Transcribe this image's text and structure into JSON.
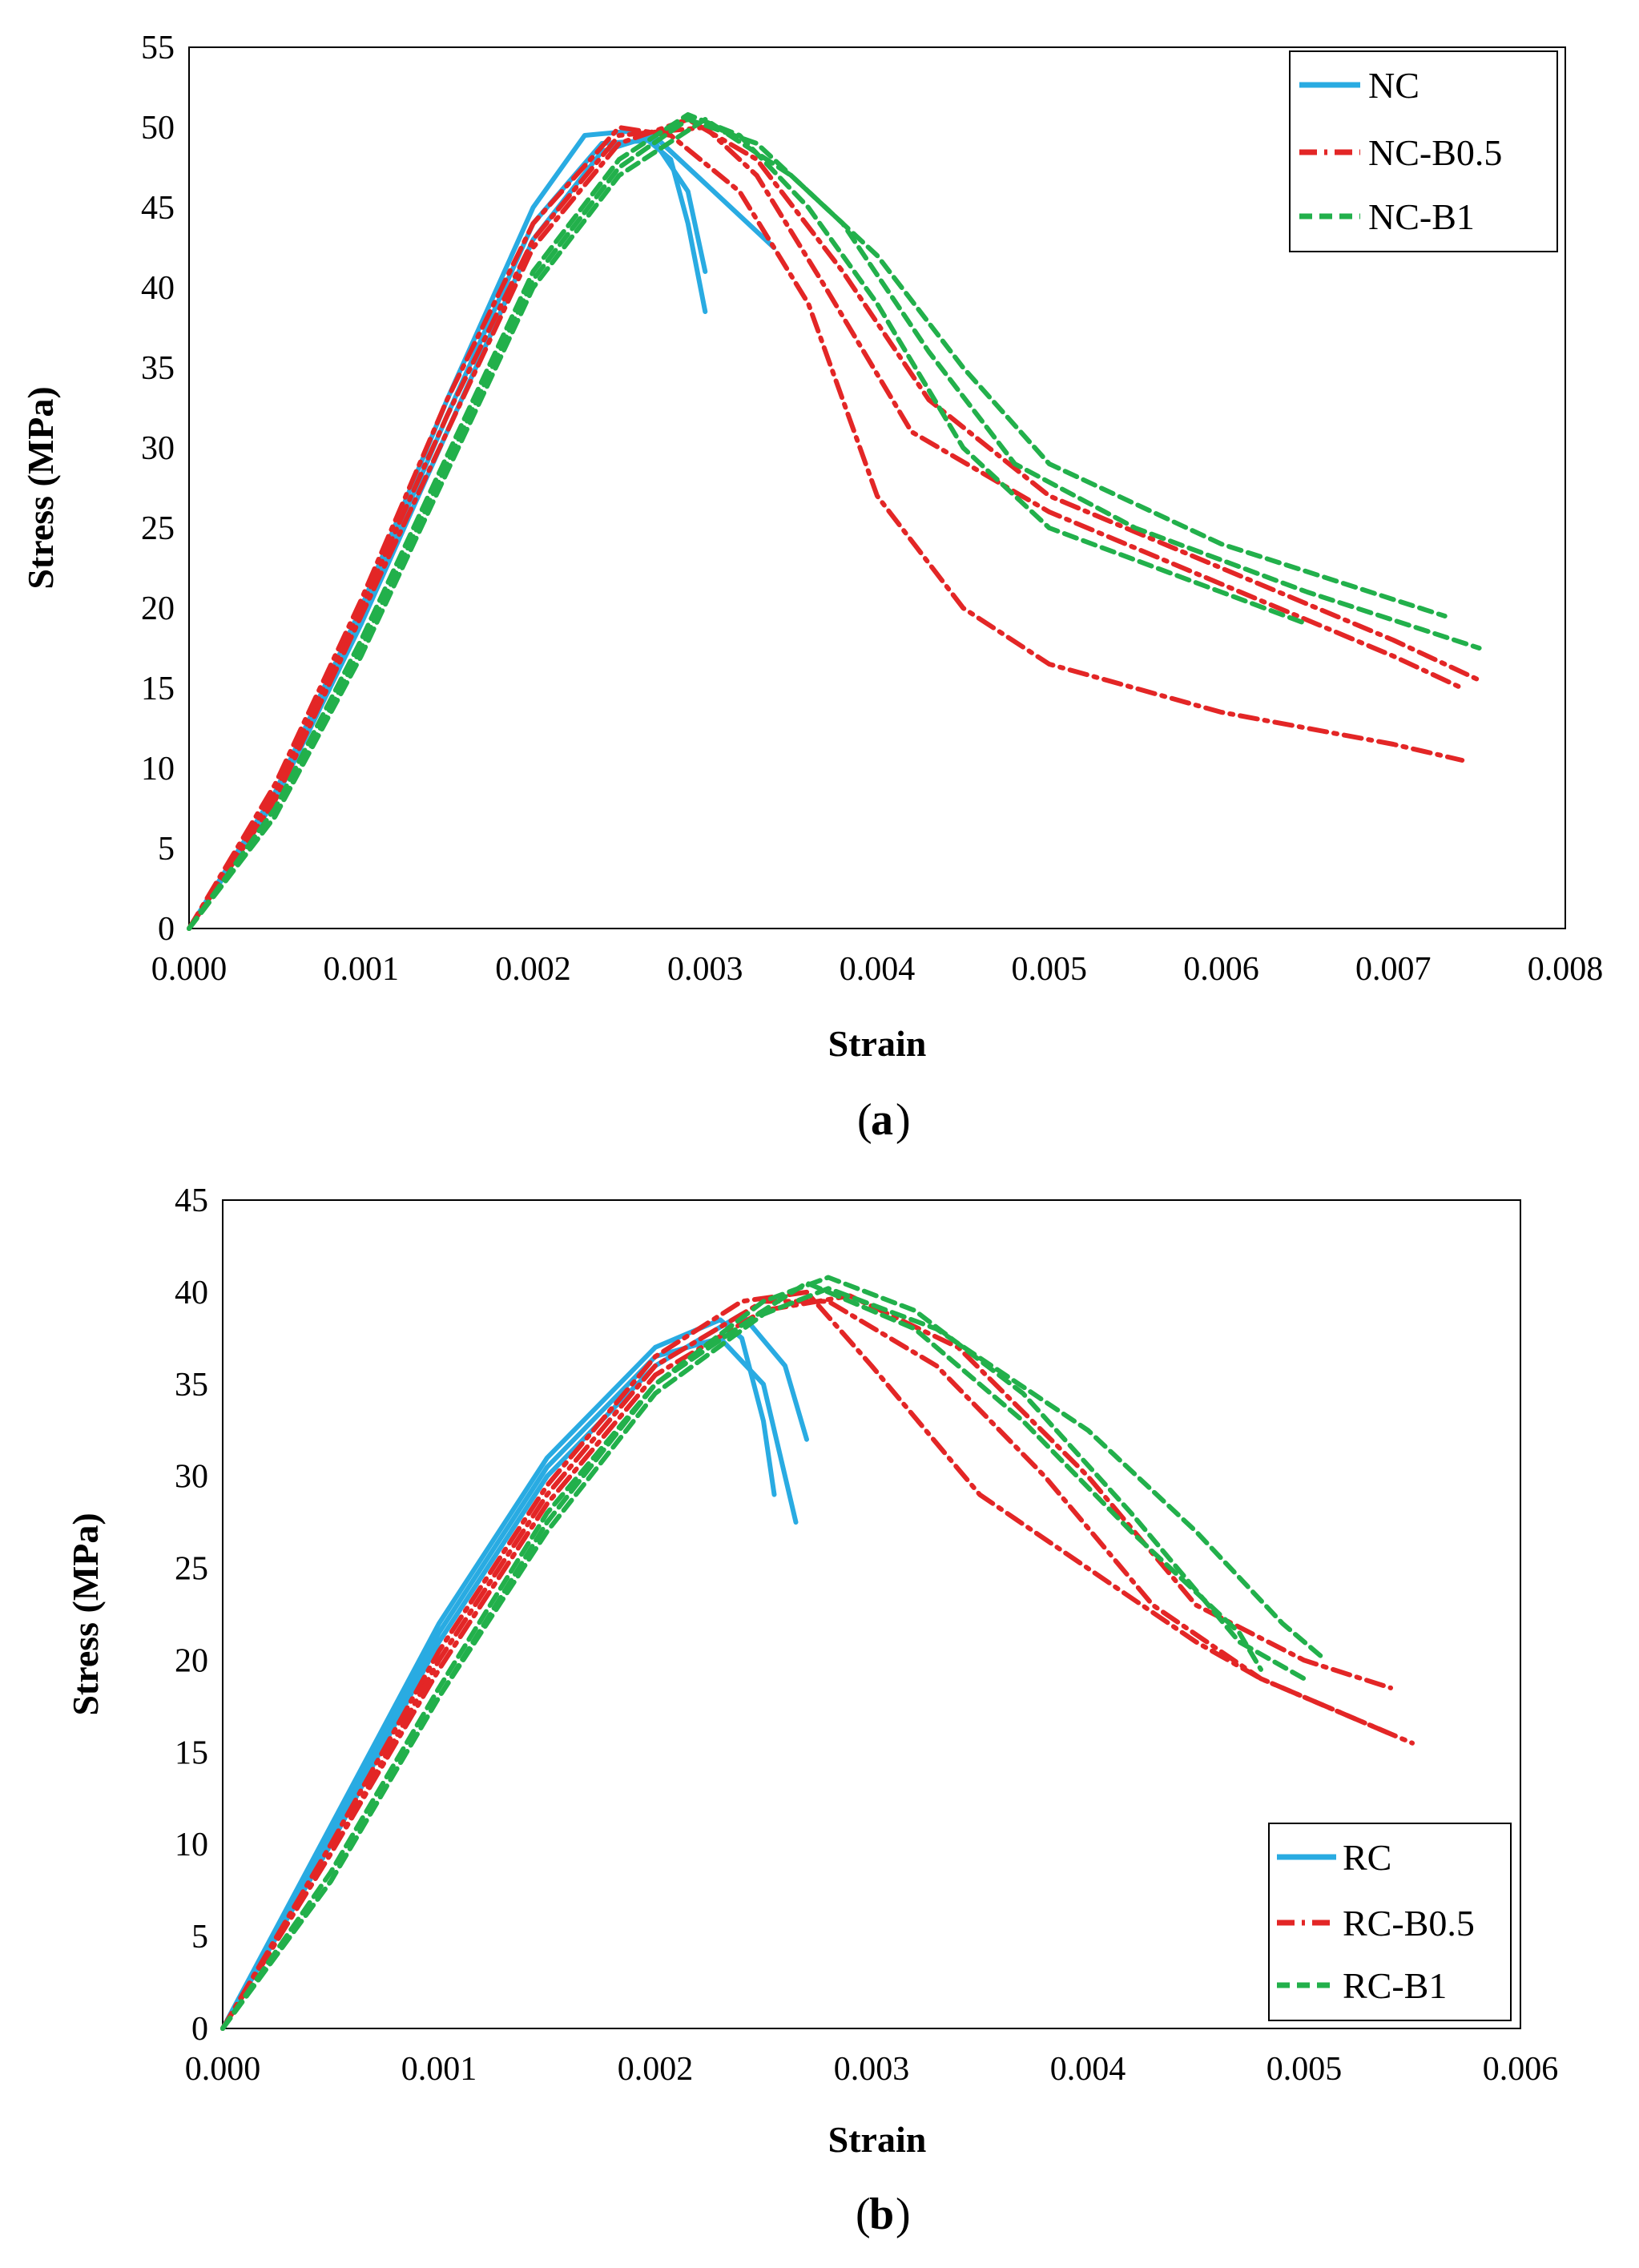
{
  "chart_data": [
    {
      "type": "line",
      "panel_label": "a",
      "xlabel": "Strain",
      "ylabel": "Stress (MPa)",
      "xlim": [
        0,
        0.008
      ],
      "ylim": [
        0,
        55
      ],
      "xticks": [
        "0.000",
        "0.001",
        "0.002",
        "0.003",
        "0.004",
        "0.005",
        "0.006",
        "0.007",
        "0.008"
      ],
      "yticks": [
        "0",
        "5",
        "10",
        "15",
        "20",
        "25",
        "30",
        "35",
        "40",
        "45",
        "50",
        "55"
      ],
      "legend_position": "top-right",
      "series": [
        {
          "name": "NC",
          "label": "NC",
          "color": "#29abe2",
          "dash": "solid",
          "curves": [
            [
              [
                0,
                0
              ],
              [
                0.0005,
                8.5
              ],
              [
                0.001,
                20
              ],
              [
                0.0015,
                33
              ],
              [
                0.002,
                45
              ],
              [
                0.0023,
                49.5
              ],
              [
                0.0026,
                49.8
              ],
              [
                0.0028,
                48
              ],
              [
                0.0029,
                44
              ],
              [
                0.003,
                38.5
              ]
            ],
            [
              [
                0,
                0
              ],
              [
                0.0005,
                8
              ],
              [
                0.001,
                19.5
              ],
              [
                0.0015,
                32
              ],
              [
                0.002,
                44
              ],
              [
                0.0024,
                49
              ],
              [
                0.0027,
                49.2
              ],
              [
                0.0029,
                46
              ],
              [
                0.003,
                41
              ]
            ],
            [
              [
                0,
                0
              ],
              [
                0.0005,
                8
              ],
              [
                0.001,
                19
              ],
              [
                0.0015,
                31
              ],
              [
                0.002,
                43
              ],
              [
                0.0024,
                48.5
              ],
              [
                0.0027,
                49.5
              ],
              [
                0.003,
                46.5
              ],
              [
                0.0034,
                42.5
              ]
            ]
          ]
        },
        {
          "name": "NC-B0.5",
          "label": "NC-B0.5",
          "color": "#e32626",
          "dash": "dashdot",
          "curves": [
            [
              [
                0,
                0
              ],
              [
                0.0005,
                9
              ],
              [
                0.001,
                20.5
              ],
              [
                0.0015,
                33
              ],
              [
                0.002,
                44
              ],
              [
                0.0025,
                50
              ],
              [
                0.0028,
                49.5
              ],
              [
                0.0032,
                46
              ],
              [
                0.0036,
                39
              ],
              [
                0.004,
                27
              ],
              [
                0.0045,
                20
              ],
              [
                0.005,
                16.5
              ],
              [
                0.006,
                13.5
              ],
              [
                0.007,
                11.5
              ],
              [
                0.0074,
                10.5
              ]
            ],
            [
              [
                0,
                0
              ],
              [
                0.0005,
                8.5
              ],
              [
                0.001,
                20
              ],
              [
                0.0015,
                32
              ],
              [
                0.002,
                43
              ],
              [
                0.0025,
                49.5
              ],
              [
                0.003,
                50
              ],
              [
                0.0033,
                47
              ],
              [
                0.0037,
                40
              ],
              [
                0.0042,
                31
              ],
              [
                0.005,
                26
              ],
              [
                0.006,
                21.5
              ],
              [
                0.007,
                17
              ],
              [
                0.0074,
                15
              ]
            ],
            [
              [
                0,
                0
              ],
              [
                0.0005,
                8
              ],
              [
                0.001,
                19.5
              ],
              [
                0.0015,
                31
              ],
              [
                0.002,
                42.5
              ],
              [
                0.0025,
                49
              ],
              [
                0.0029,
                50.5
              ],
              [
                0.0033,
                48
              ],
              [
                0.0038,
                41
              ],
              [
                0.0043,
                33
              ],
              [
                0.005,
                27
              ],
              [
                0.006,
                22.5
              ],
              [
                0.007,
                18
              ],
              [
                0.0075,
                15.5
              ]
            ]
          ]
        },
        {
          "name": "NC-B1",
          "label": "NC-B1",
          "color": "#22b04b",
          "dash": "dashed",
          "curves": [
            [
              [
                0,
                0
              ],
              [
                0.0005,
                7.5
              ],
              [
                0.001,
                18
              ],
              [
                0.0015,
                29.5
              ],
              [
                0.002,
                41
              ],
              [
                0.0025,
                48
              ],
              [
                0.0029,
                50.8
              ],
              [
                0.0032,
                49.5
              ],
              [
                0.0036,
                45
              ],
              [
                0.004,
                39
              ],
              [
                0.0045,
                30
              ],
              [
                0.005,
                25
              ],
              [
                0.006,
                21
              ],
              [
                0.0065,
                19
              ]
            ],
            [
              [
                0,
                0
              ],
              [
                0.0005,
                7
              ],
              [
                0.001,
                17.5
              ],
              [
                0.0015,
                29
              ],
              [
                0.002,
                40.5
              ],
              [
                0.0025,
                47.5
              ],
              [
                0.0029,
                50.5
              ],
              [
                0.0033,
                49
              ],
              [
                0.0038,
                44
              ],
              [
                0.0043,
                36
              ],
              [
                0.0048,
                29
              ],
              [
                0.0055,
                25
              ],
              [
                0.0065,
                21
              ],
              [
                0.0075,
                17.5
              ]
            ],
            [
              [
                0,
                0
              ],
              [
                0.0005,
                7
              ],
              [
                0.001,
                17
              ],
              [
                0.0015,
                28.5
              ],
              [
                0.002,
                40
              ],
              [
                0.0025,
                47
              ],
              [
                0.003,
                50.5
              ],
              [
                0.0035,
                47
              ],
              [
                0.004,
                42
              ],
              [
                0.0045,
                35
              ],
              [
                0.005,
                29
              ],
              [
                0.006,
                24
              ],
              [
                0.0073,
                19.5
              ]
            ]
          ]
        }
      ]
    },
    {
      "type": "line",
      "panel_label": "b",
      "xlabel": "Strain",
      "ylabel": "Stress (MPa)",
      "xlim": [
        0,
        0.006
      ],
      "ylim": [
        0,
        45
      ],
      "xticks": [
        "0.000",
        "0.001",
        "0.002",
        "0.003",
        "0.004",
        "0.005",
        "0.006"
      ],
      "yticks": [
        "0",
        "5",
        "10",
        "15",
        "20",
        "25",
        "30",
        "35",
        "40",
        "45"
      ],
      "legend_position": "bottom-right",
      "series": [
        {
          "name": "RC",
          "label": "RC",
          "color": "#29abe2",
          "dash": "solid",
          "curves": [
            [
              [
                0,
                0
              ],
              [
                0.0005,
                11
              ],
              [
                0.001,
                22
              ],
              [
                0.0015,
                31
              ],
              [
                0.002,
                37
              ],
              [
                0.0023,
                38.5
              ],
              [
                0.0024,
                37.5
              ],
              [
                0.0025,
                33
              ],
              [
                0.00255,
                29
              ]
            ],
            [
              [
                0,
                0
              ],
              [
                0.0005,
                10.5
              ],
              [
                0.001,
                21.5
              ],
              [
                0.0015,
                30.5
              ],
              [
                0.002,
                36.5
              ],
              [
                0.0023,
                37.5
              ],
              [
                0.0025,
                35
              ],
              [
                0.00265,
                27.5
              ]
            ],
            [
              [
                0,
                0
              ],
              [
                0.0005,
                10
              ],
              [
                0.001,
                21
              ],
              [
                0.0015,
                30
              ],
              [
                0.002,
                36
              ],
              [
                0.0024,
                38.8
              ],
              [
                0.0026,
                36
              ],
              [
                0.0027,
                32
              ]
            ]
          ]
        },
        {
          "name": "RC-B0.5",
          "label": "RC-B0.5",
          "color": "#e32626",
          "dash": "dashdot",
          "curves": [
            [
              [
                0,
                0
              ],
              [
                0.0005,
                10
              ],
              [
                0.001,
                20.5
              ],
              [
                0.0015,
                29.5
              ],
              [
                0.002,
                36.5
              ],
              [
                0.0024,
                39.5
              ],
              [
                0.0027,
                40
              ],
              [
                0.003,
                36
              ],
              [
                0.0035,
                29
              ],
              [
                0.004,
                25
              ],
              [
                0.0045,
                21
              ],
              [
                0.0048,
                19
              ],
              [
                0.0054,
                16
              ]
            ],
            [
              [
                0,
                0
              ],
              [
                0.0005,
                9.5
              ],
              [
                0.001,
                20
              ],
              [
                0.0015,
                29
              ],
              [
                0.002,
                36
              ],
              [
                0.0025,
                39.5
              ],
              [
                0.0028,
                39.5
              ],
              [
                0.0033,
                36
              ],
              [
                0.0038,
                30
              ],
              [
                0.0043,
                23
              ],
              [
                0.0048,
                19
              ],
              [
                0.0055,
                15.5
              ]
            ],
            [
              [
                0,
                0
              ],
              [
                0.0005,
                9.5
              ],
              [
                0.001,
                19.5
              ],
              [
                0.0015,
                28.5
              ],
              [
                0.002,
                35.5
              ],
              [
                0.0025,
                39
              ],
              [
                0.0029,
                39.8
              ],
              [
                0.0034,
                37
              ],
              [
                0.004,
                30
              ],
              [
                0.0045,
                23
              ],
              [
                0.005,
                20
              ],
              [
                0.0054,
                18.5
              ]
            ]
          ]
        },
        {
          "name": "RC-B1",
          "label": "RC-B1",
          "color": "#22b04b",
          "dash": "dashed",
          "curves": [
            [
              [
                0,
                0
              ],
              [
                0.0005,
                8.5
              ],
              [
                0.001,
                18.5
              ],
              [
                0.0015,
                28
              ],
              [
                0.002,
                35
              ],
              [
                0.0025,
                39.5
              ],
              [
                0.0028,
                40.8
              ],
              [
                0.0032,
                39
              ],
              [
                0.0037,
                34.5
              ],
              [
                0.0042,
                28
              ],
              [
                0.0047,
                21
              ],
              [
                0.005,
                19
              ]
            ],
            [
              [
                0,
                0
              ],
              [
                0.0005,
                8
              ],
              [
                0.001,
                18
              ],
              [
                0.0015,
                27.5
              ],
              [
                0.002,
                35
              ],
              [
                0.0025,
                39
              ],
              [
                0.0027,
                40.5
              ],
              [
                0.0032,
                38
              ],
              [
                0.0037,
                33
              ],
              [
                0.0042,
                27
              ],
              [
                0.0047,
                21.5
              ],
              [
                0.0048,
                19.5
              ]
            ],
            [
              [
                0,
                0
              ],
              [
                0.0005,
                8
              ],
              [
                0.001,
                18
              ],
              [
                0.0015,
                27
              ],
              [
                0.002,
                34.5
              ],
              [
                0.0025,
                38.8
              ],
              [
                0.0028,
                40.2
              ],
              [
                0.0033,
                38
              ],
              [
                0.004,
                32.5
              ],
              [
                0.0045,
                27
              ],
              [
                0.0049,
                22
              ],
              [
                0.0051,
                20
              ]
            ]
          ]
        }
      ]
    }
  ]
}
